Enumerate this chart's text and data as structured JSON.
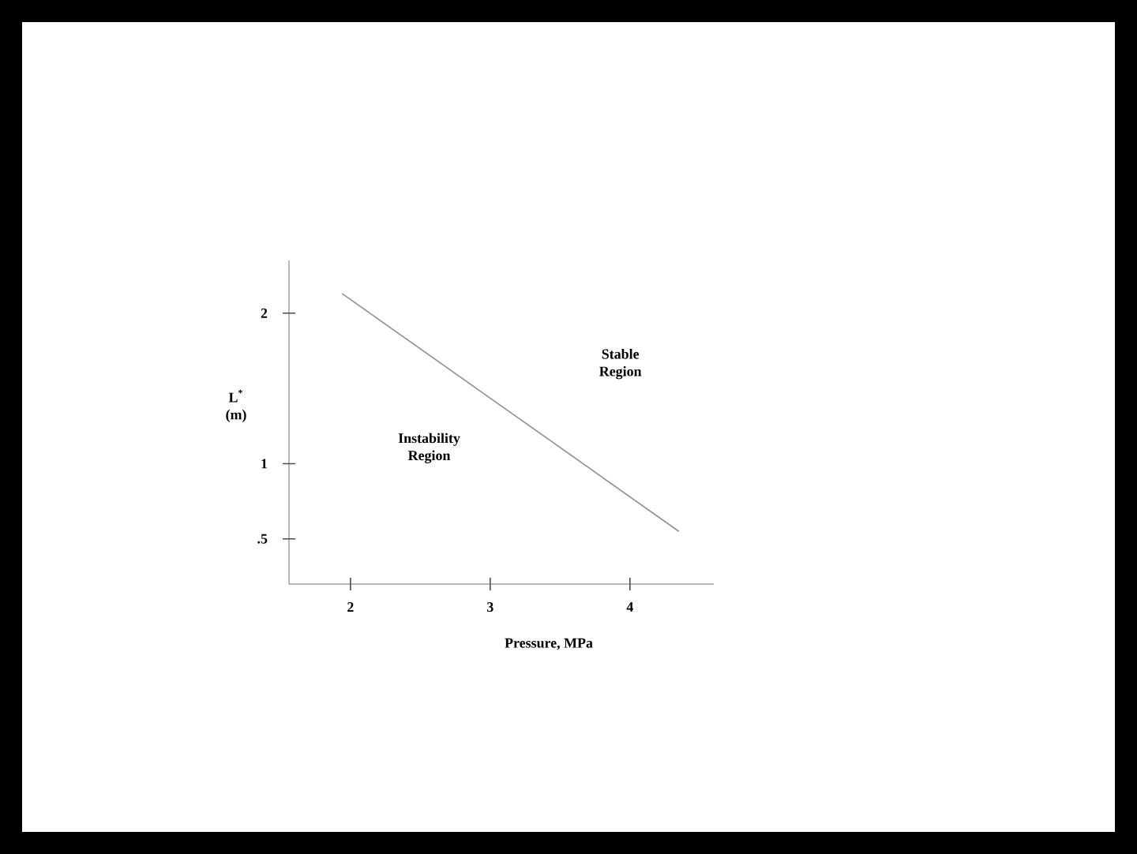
{
  "chart_data": {
    "type": "line",
    "xlabel": "Pressure, MPa",
    "ylabel": "L$^{*}$ (m)",
    "x": [
      1.94,
      4.35
    ],
    "series": [
      {
        "color": "#909090",
        "values": [
          2.13,
          0.55
        ]
      }
    ],
    "xlim": [
      1.56,
      4.6
    ],
    "ylim": [
      0.2,
      2.35
    ],
    "xticks": [
      2,
      3,
      4
    ],
    "yticks": [
      {
        "value": 0.5,
        "label": ".5"
      },
      1,
      2
    ],
    "annotations": [
      "Stable Region",
      "Instability Region"
    ],
    "grid": false,
    "marker": "none",
    "line_style": "solid"
  }
}
